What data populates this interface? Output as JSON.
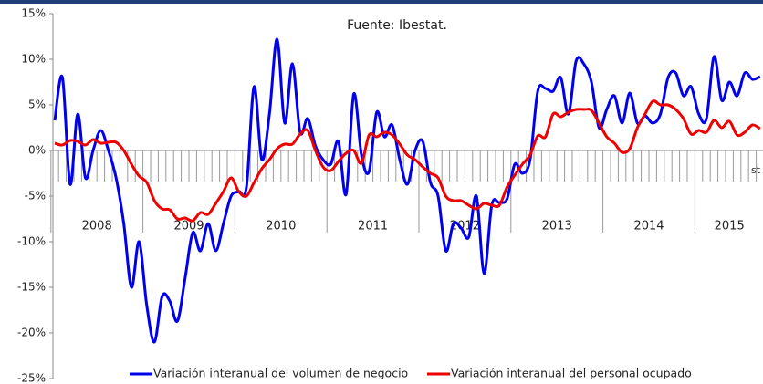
{
  "chart_data": {
    "type": "line",
    "title": "Fuente: Ibestat.",
    "annotation": "st",
    "years": [
      "2008",
      "2009",
      "2010",
      "2011",
      "2012",
      "2013",
      "2014",
      "2015"
    ],
    "ylim": [
      -25,
      15
    ],
    "yticks": [
      {
        "value": -25,
        "label": "-25%"
      },
      {
        "value": -20,
        "label": "-20%"
      },
      {
        "value": -15,
        "label": "-15%"
      },
      {
        "value": -10,
        "label": "-10%"
      },
      {
        "value": -5,
        "label": "-5%"
      },
      {
        "value": 0,
        "label": "0%"
      },
      {
        "value": 5,
        "label": "5%"
      },
      {
        "value": 10,
        "label": "10%"
      },
      {
        "value": 15,
        "label": "15%"
      }
    ],
    "series": [
      {
        "name": "Variación interanual del volumen de negocio",
        "color": "#0000ee",
        "values": [
          3.3,
          8,
          -3.7,
          4,
          -3,
          0,
          2.2,
          0,
          -3,
          -8,
          -15,
          -10,
          -17,
          -21,
          -16,
          -16.5,
          -18.7,
          -14,
          -9,
          -11,
          -8,
          -11,
          -8,
          -5,
          -4.5,
          -4,
          7,
          -1,
          4,
          12.2,
          3,
          9.5,
          2,
          3.5,
          0.5,
          -1,
          -1.5,
          1,
          -4.8,
          6.2,
          -0.5,
          -2.3,
          4.2,
          1.5,
          2.8,
          -1,
          -3.7,
          0,
          1,
          -3.5,
          -5,
          -11,
          -8,
          -8.5,
          -9.5,
          -5,
          -13.5,
          -6,
          -5.7,
          -5.3,
          -1.5,
          -2.5,
          -1,
          6.5,
          6.8,
          6.5,
          8,
          4,
          9.8,
          9.5,
          7.5,
          2.5,
          4.5,
          6,
          3,
          6.3,
          3,
          3.8,
          3,
          4,
          8,
          8.5,
          6,
          7,
          4,
          3.5,
          10.3,
          5.5,
          7.5,
          6,
          8.5,
          7.8,
          8.1
        ]
      },
      {
        "name": "Variación interanual del personal ocupado",
        "color": "#ee0000",
        "values": [
          0.8,
          0.6,
          1.1,
          1,
          0.6,
          1.2,
          0.8,
          0.9,
          0.9,
          0,
          -1.5,
          -2.8,
          -3.5,
          -5.5,
          -6.4,
          -6.5,
          -7.5,
          -7.4,
          -7.7,
          -6.8,
          -7,
          -5.8,
          -4.5,
          -3,
          -4.5,
          -5,
          -3.5,
          -2,
          -1,
          0.2,
          0.7,
          0.7,
          1.8,
          2.2,
          0,
          -1.8,
          -2.2,
          -1.2,
          -0.3,
          0,
          -1.4,
          1.7,
          1.5,
          2,
          1.7,
          0.7,
          -0.5,
          -1,
          -1.8,
          -2.5,
          -3,
          -5,
          -5.5,
          -5.5,
          -6,
          -6.4,
          -5.8,
          -6,
          -6,
          -4,
          -2.7,
          -1.5,
          -0.5,
          1.6,
          1.5,
          4,
          3.7,
          4.2,
          4.5,
          4.5,
          4.4,
          3,
          1.5,
          0.8,
          -0.2,
          0.2,
          2.5,
          4,
          5.4,
          5,
          5,
          4.5,
          3.5,
          1.8,
          2.2,
          2,
          3.3,
          2.5,
          3.2,
          1.7,
          2.0,
          2.8,
          2.4
        ]
      }
    ]
  }
}
